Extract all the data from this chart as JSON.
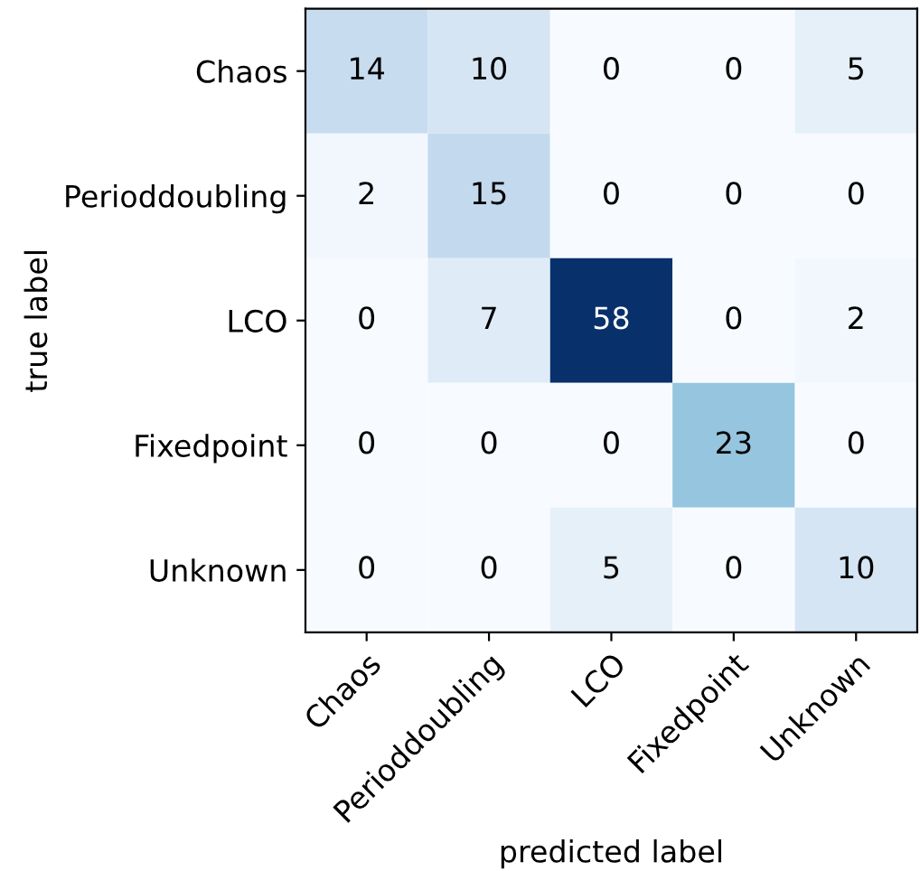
{
  "chart_data": {
    "type": "heatmap",
    "xlabel": "predicted label",
    "ylabel": "true label",
    "categories": [
      "Chaos",
      "Perioddoubling",
      "LCO",
      "Fixedpoint",
      "Unknown"
    ],
    "y_categories": [
      "Chaos",
      "Perioddoubling",
      "LCO",
      "Fixedpoint",
      "Unknown"
    ],
    "cells": [
      [
        14,
        10,
        0,
        0,
        5
      ],
      [
        2,
        15,
        0,
        0,
        0
      ],
      [
        0,
        7,
        58,
        0,
        2
      ],
      [
        0,
        0,
        0,
        23,
        0
      ],
      [
        0,
        0,
        5,
        0,
        10
      ]
    ],
    "data_labels": true
  }
}
